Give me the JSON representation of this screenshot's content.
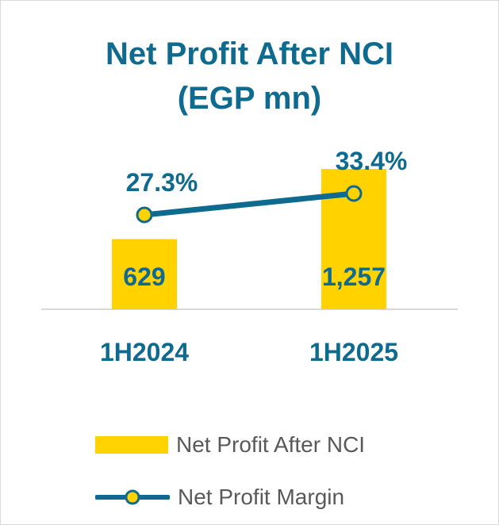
{
  "chart_data": {
    "type": "bar",
    "title_lines": [
      "Net Profit After NCI",
      "(EGP mn)"
    ],
    "categories": [
      "1H2024",
      "1H2025"
    ],
    "series": [
      {
        "name": "Net Profit After NCI",
        "kind": "bar",
        "values": [
          629,
          1257
        ],
        "value_labels": [
          "629",
          "1,257"
        ],
        "color": "#ffd200"
      },
      {
        "name": "Net Profit Margin",
        "kind": "line",
        "values": [
          27.3,
          33.4
        ],
        "value_labels": [
          "27.3%",
          "33.4%"
        ],
        "color": "#0e6a8f",
        "marker_color": "#ffd200"
      }
    ],
    "legend_position": "bottom",
    "grid": false
  }
}
